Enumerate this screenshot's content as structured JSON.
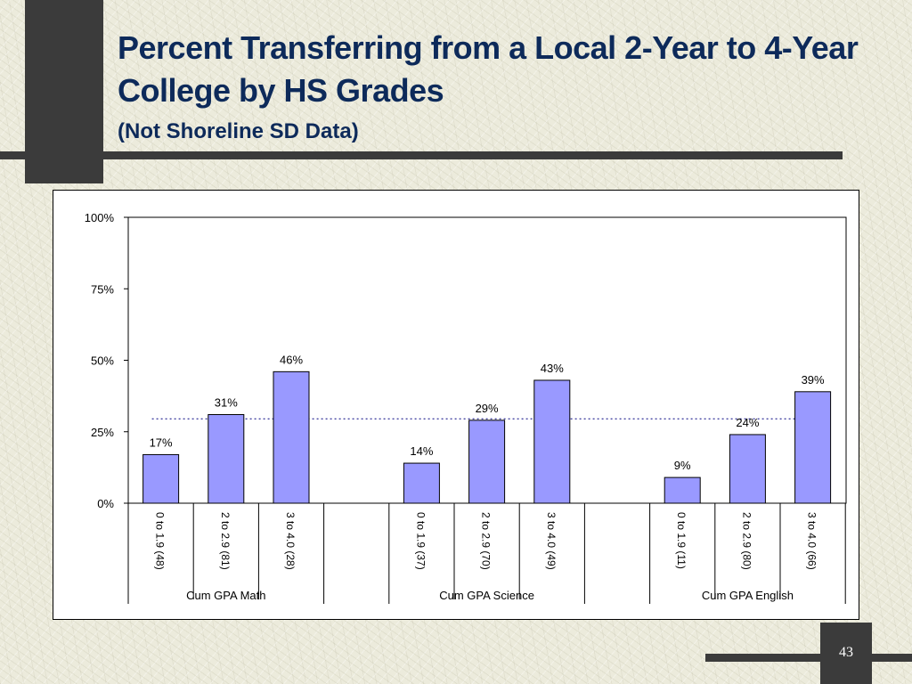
{
  "slide": {
    "title": "Percent Transferring from a Local 2-Year to 4-Year College by HS Grades",
    "subtitle": "(Not Shoreline SD Data)",
    "page_number": "43"
  },
  "colors": {
    "bar": "#9999ff",
    "title": "#0d2a5a",
    "reference_line": "#000080"
  },
  "chart_data": {
    "type": "bar",
    "y_ticks": [
      "0%",
      "25%",
      "50%",
      "75%",
      "100%"
    ],
    "ylim": [
      0,
      100
    ],
    "reference_line_value": 29.5,
    "groups": [
      {
        "label": "Cum GPA Math",
        "categories": [
          "0 to 1.9 (48)",
          "2 to 2.9 (81)",
          "3 to 4.0 (28)"
        ],
        "values": [
          17,
          31,
          46
        ],
        "value_labels": [
          "17%",
          "31%",
          "46%"
        ]
      },
      {
        "label": "Cum GPA Science",
        "categories": [
          "0 to 1.9 (37)",
          "2 to 2.9 (70)",
          "3 to 4.0 (49)"
        ],
        "values": [
          14,
          29,
          43
        ],
        "value_labels": [
          "14%",
          "29%",
          "43%"
        ]
      },
      {
        "label": "Cum GPA English",
        "categories": [
          "0 to 1.9 (11)",
          "2 to 2.9 (80)",
          "3 to 4.0 (66)"
        ],
        "values": [
          9,
          24,
          39
        ],
        "value_labels": [
          "9%",
          "24%",
          "39%"
        ]
      }
    ]
  }
}
